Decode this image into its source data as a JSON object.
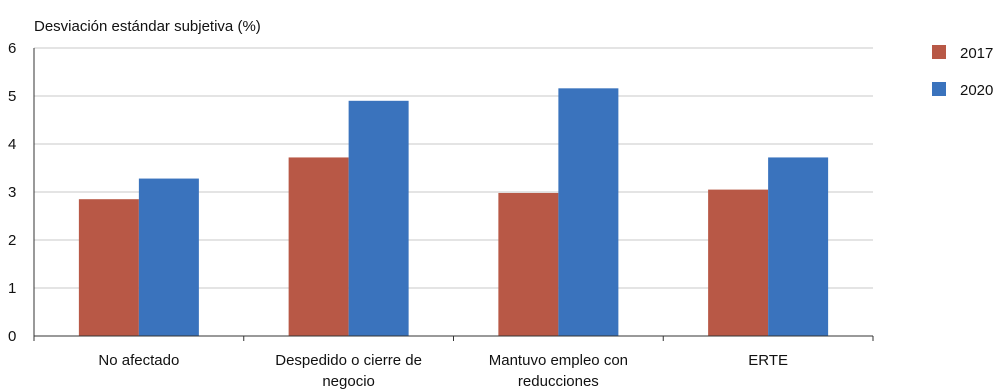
{
  "chart_data": {
    "type": "bar",
    "title": "",
    "ylabel": "Desviación estándar subjetiva (%)",
    "xlabel": "",
    "ylim": [
      0,
      6
    ],
    "yticks": [
      0,
      1,
      2,
      3,
      4,
      5,
      6
    ],
    "grid": true,
    "legend_position": "top-right",
    "categories": [
      [
        "No afectado"
      ],
      [
        "Despedido o cierre de",
        "negocio"
      ],
      [
        "Mantuvo empleo con",
        "reducciones"
      ],
      [
        "ERTE"
      ]
    ],
    "series": [
      {
        "name": "2017",
        "color": "#b85846",
        "values": [
          2.85,
          3.72,
          2.98,
          3.05
        ]
      },
      {
        "name": "2020",
        "color": "#3a73bd",
        "values": [
          3.28,
          4.9,
          5.16,
          3.72
        ]
      }
    ]
  }
}
